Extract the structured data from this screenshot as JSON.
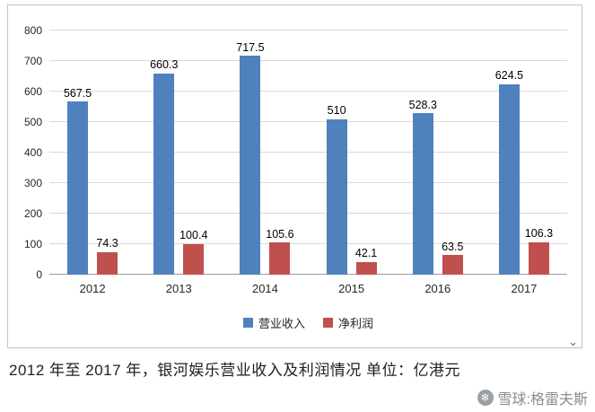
{
  "chart_data": {
    "type": "bar",
    "categories": [
      "2012",
      "2013",
      "2014",
      "2015",
      "2016",
      "2017"
    ],
    "series": [
      {
        "name": "营业收入",
        "color": "#4F81BD",
        "values": [
          567.5,
          660.3,
          717.5,
          510,
          528.3,
          624.5
        ]
      },
      {
        "name": "净利润",
        "color": "#C0504D",
        "values": [
          74.3,
          100.4,
          105.6,
          42.1,
          63.5,
          106.3
        ]
      }
    ],
    "title": "",
    "xlabel": "",
    "ylabel": "",
    "ylim": [
      0,
      800
    ],
    "ytick_step": 100,
    "grid": true,
    "legend_position": "bottom"
  },
  "caption": "2012 年至 2017 年，银河娱乐营业收入及利润情况 单位：亿港元",
  "watermark": {
    "text": "雪球:格雷夫斯",
    "icon": "snowball-logo"
  },
  "controls": {
    "scroll_down_glyph": "⌄"
  }
}
